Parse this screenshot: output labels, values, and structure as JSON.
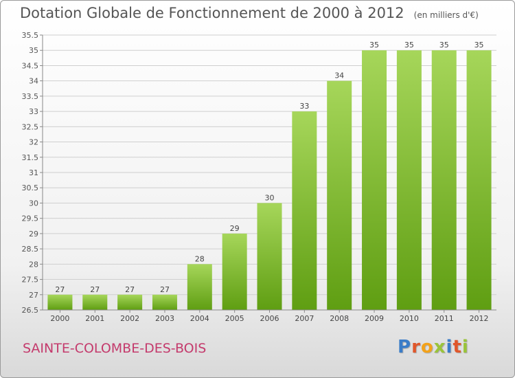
{
  "header": {
    "title": "Dotation Globale de Fonctionnement de 2000 à 2012",
    "subtitle": "(en milliers d'€)"
  },
  "footer": {
    "commune": "SAINTE-COLOMBE-DES-BOIS",
    "logo_letters": [
      "P",
      "r",
      "o",
      "x",
      "i",
      "t",
      "i"
    ],
    "logo_colors": [
      "#3a7cc8",
      "#e0572b",
      "#f3a21a",
      "#9ac43a",
      "#3a7cc8",
      "#e0572b",
      "#9ac43a"
    ]
  },
  "chart_data": {
    "type": "bar",
    "title": "Dotation Globale de Fonctionnement de 2000 à 2012",
    "subtitle": "(en milliers d'€)",
    "categories": [
      "2000",
      "2001",
      "2002",
      "2003",
      "2004",
      "2005",
      "2006",
      "2007",
      "2008",
      "2009",
      "2010",
      "2011",
      "2012"
    ],
    "values": [
      27,
      27,
      27,
      27,
      28,
      29,
      30,
      33,
      34,
      35,
      35,
      35,
      35
    ],
    "data_labels": [
      "27",
      "27",
      "27",
      "27",
      "28",
      "29",
      "30",
      "33",
      "34",
      "35",
      "35",
      "35",
      "35"
    ],
    "ylim": [
      26.5,
      35.5
    ],
    "yticks": [
      26.5,
      27,
      27.5,
      28,
      28.5,
      29,
      29.5,
      30,
      30.5,
      31,
      31.5,
      32,
      32.5,
      33,
      33.5,
      34,
      34.5,
      35,
      35.5
    ],
    "ytick_labels": [
      "26.5",
      "27",
      "27.5",
      "28",
      "28.5",
      "29",
      "29.5",
      "30",
      "30.5",
      "31",
      "31.5",
      "32",
      "32.5",
      "33",
      "33.5",
      "34",
      "34.5",
      "35",
      "35.5"
    ],
    "grid": true,
    "bar_color_top": "#a6d65a",
    "bar_color_bottom": "#5f9e12",
    "xlabel": "",
    "ylabel": ""
  }
}
